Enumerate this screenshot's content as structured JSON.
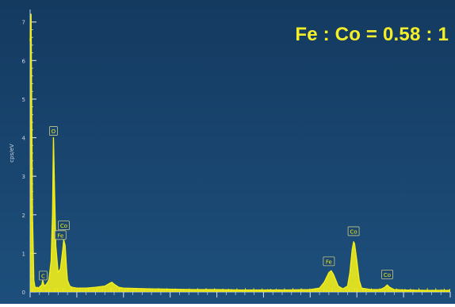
{
  "annotation": "Fe : Co = 0.58 : 1",
  "chart_data": {
    "type": "line",
    "title": "",
    "xlabel": "",
    "ylabel": "cps/eV",
    "xlim": [
      0,
      9.0
    ],
    "ylim": [
      0,
      7.2
    ],
    "yticks": [
      "0",
      "1",
      "2",
      "3",
      "4",
      "5",
      "6",
      "7"
    ],
    "grid": false,
    "colors": {
      "background_top": "#143a60",
      "background_bottom": "#1d4f7c",
      "spectrum": "#f2ee1a",
      "peak_label_border": "#c9c88a",
      "axis": "#c8d4e0"
    },
    "series": [
      {
        "x": [
          0.0,
          0.02,
          0.05,
          0.08,
          0.1,
          0.12,
          0.15,
          0.18,
          0.22,
          0.25,
          0.27,
          0.28,
          0.3,
          0.35,
          0.4,
          0.45,
          0.48,
          0.5,
          0.52,
          0.55,
          0.6,
          0.65,
          0.7,
          0.72,
          0.75,
          0.78,
          0.8,
          0.85,
          0.9,
          1.0,
          1.2,
          1.4,
          1.6,
          1.7,
          1.75,
          1.8,
          1.9,
          2.0,
          2.5,
          3.0,
          3.5,
          4.0,
          4.5,
          5.0,
          5.5,
          6.0,
          6.2,
          6.3,
          6.4,
          6.45,
          6.5,
          6.6,
          6.7,
          6.8,
          6.85,
          6.9,
          6.93,
          6.95,
          7.0,
          7.05,
          7.1,
          7.3,
          7.5,
          7.6,
          7.65,
          7.7,
          7.8,
          8.0,
          8.5,
          9.0
        ],
        "y": [
          6.5,
          7.2,
          2.0,
          0.3,
          0.15,
          0.1,
          0.12,
          0.1,
          0.15,
          0.18,
          0.3,
          0.25,
          0.15,
          0.2,
          0.3,
          0.8,
          2.0,
          4.0,
          2.8,
          1.2,
          0.5,
          0.6,
          1.1,
          1.35,
          1.2,
          0.6,
          0.3,
          0.15,
          0.12,
          0.1,
          0.1,
          0.12,
          0.15,
          0.22,
          0.25,
          0.2,
          0.12,
          0.1,
          0.08,
          0.07,
          0.06,
          0.06,
          0.05,
          0.05,
          0.05,
          0.06,
          0.1,
          0.25,
          0.5,
          0.55,
          0.45,
          0.15,
          0.08,
          0.15,
          0.5,
          1.1,
          1.3,
          1.25,
          0.8,
          0.3,
          0.1,
          0.06,
          0.06,
          0.12,
          0.18,
          0.12,
          0.06,
          0.05,
          0.04,
          0.04
        ]
      }
    ],
    "peak_labels": [
      {
        "text": "C",
        "x": 0.28,
        "y": 0.25
      },
      {
        "text": "O",
        "x": 0.5,
        "y": 4.0
      },
      {
        "text": "Co",
        "x": 0.72,
        "y": 1.55
      },
      {
        "text": "Fe",
        "x": 0.65,
        "y": 1.3
      },
      {
        "text": "Fe",
        "x": 6.4,
        "y": 0.62
      },
      {
        "text": "Co",
        "x": 6.93,
        "y": 1.4
      },
      {
        "text": "Co",
        "x": 7.65,
        "y": 0.28
      }
    ]
  }
}
